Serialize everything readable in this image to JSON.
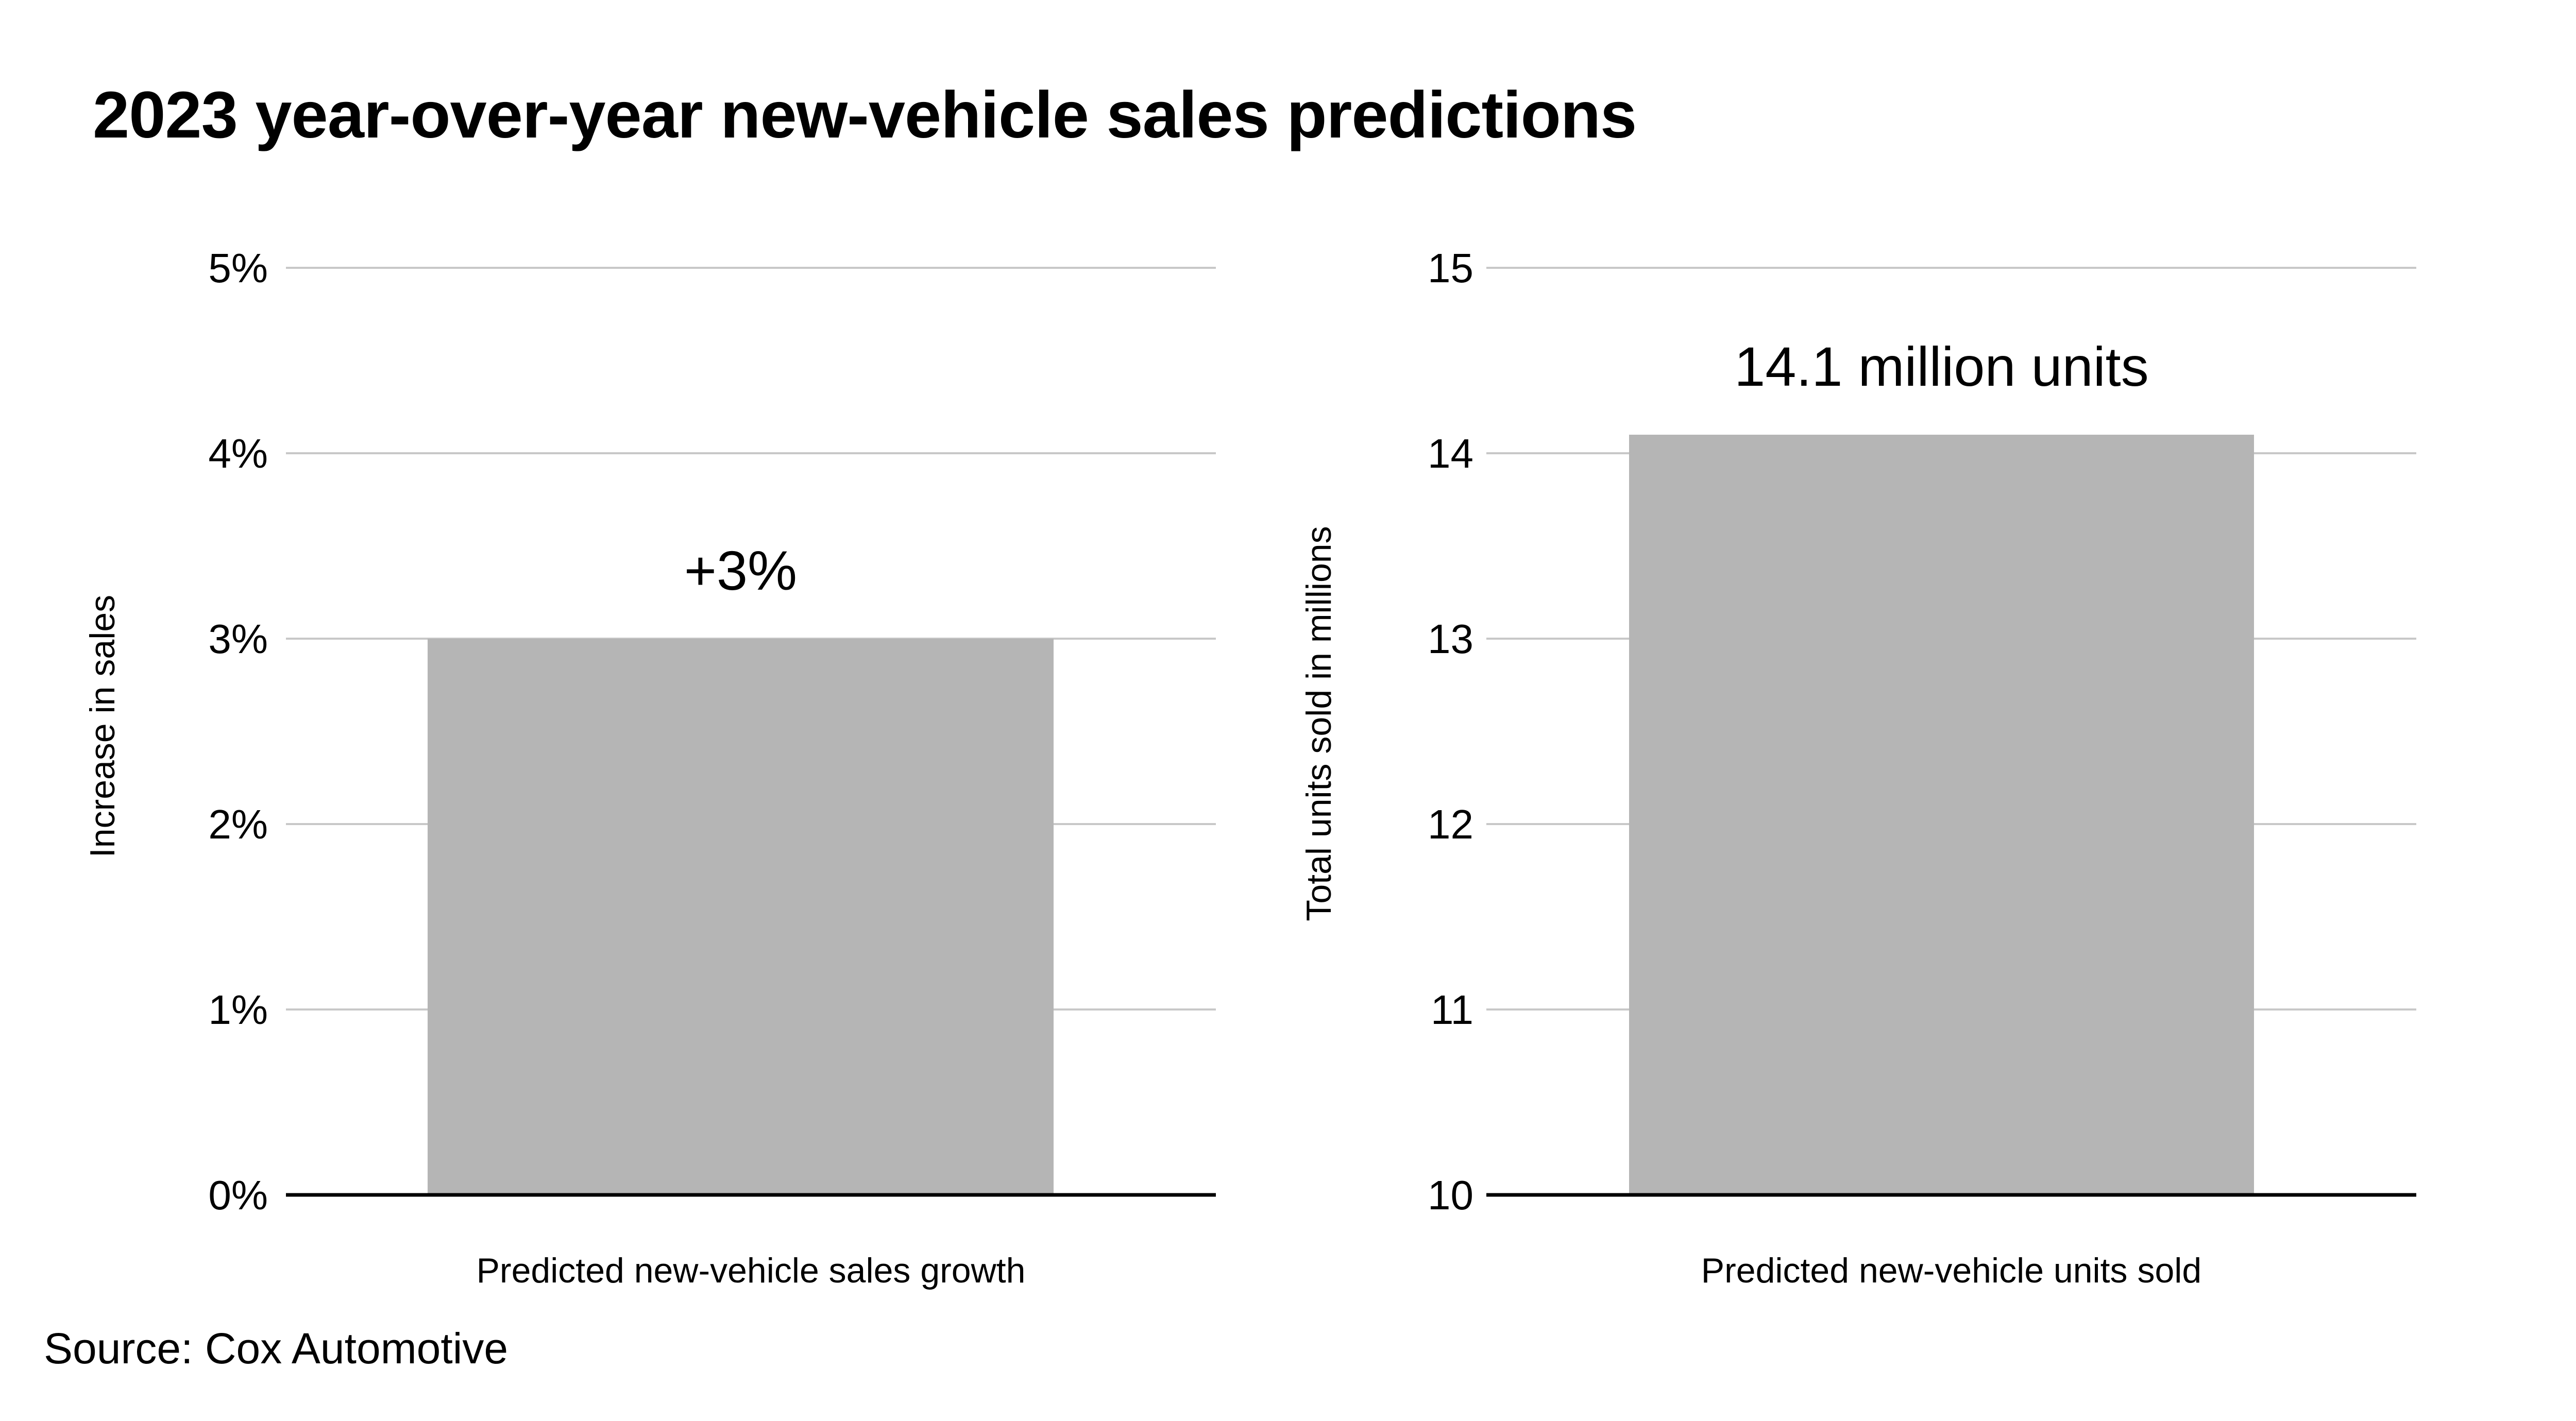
{
  "title": "2023 year-over-year new-vehicle sales predictions",
  "source": "Source: Cox Automotive",
  "colors": {
    "bar": "#b5b5b5",
    "grid": "#c8c8c8",
    "axis": "#000000",
    "text": "#000000"
  },
  "chart_data": [
    {
      "type": "bar",
      "categories": [
        "Predicted new-vehicle sales growth"
      ],
      "values": [
        3
      ],
      "data_labels": [
        "+3%"
      ],
      "xlabel": "Predicted new-vehicle sales growth",
      "ylabel": "Increase in sales",
      "ylim": [
        0,
        5
      ],
      "yticks": [
        0,
        1,
        2,
        3,
        4,
        5
      ],
      "ytick_labels": [
        "0%",
        "1%",
        "2%",
        "3%",
        "4%",
        "5%"
      ],
      "grid": true
    },
    {
      "type": "bar",
      "categories": [
        "Predicted new-vehicle units sold"
      ],
      "values": [
        14.1
      ],
      "data_labels": [
        "14.1 million units"
      ],
      "xlabel": "Predicted new-vehicle units sold",
      "ylabel": "Total units sold in millions",
      "ylim": [
        10,
        15
      ],
      "yticks": [
        10,
        11,
        12,
        13,
        14,
        15
      ],
      "ytick_labels": [
        "10",
        "11",
        "12",
        "13",
        "14",
        "15"
      ],
      "grid": true
    }
  ]
}
